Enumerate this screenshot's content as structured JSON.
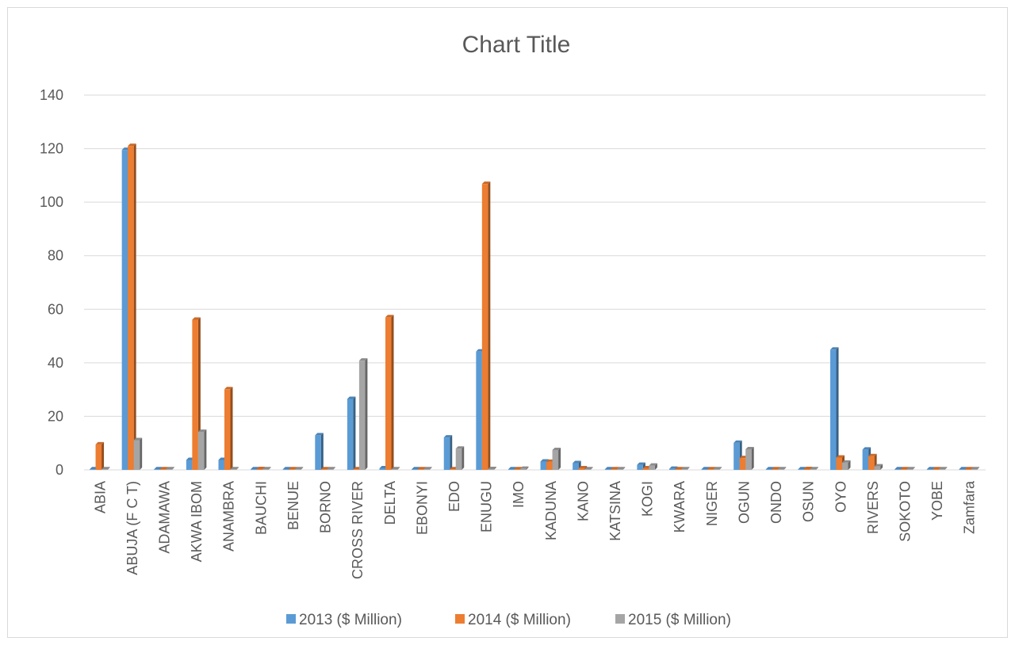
{
  "chart_data": {
    "type": "bar",
    "title": "Chart Title",
    "xlabel": "",
    "ylabel": "",
    "ylim": [
      0,
      140
    ],
    "yticks": [
      0,
      20,
      40,
      60,
      80,
      100,
      120,
      140
    ],
    "grid": true,
    "legend_position": "bottom",
    "categories": [
      "ABIA",
      "ABUJA (F C T)",
      "ADAMAWA",
      "AKWA IBOM",
      "ANAMBRA",
      "BAUCHI",
      "BENUE",
      "BORNO",
      "CROSS RIVER",
      "DELTA",
      "EBONYI",
      "EDO",
      "ENUGU",
      "IMO",
      "KADUNA",
      "KANO",
      "KATSINA",
      "KOGI",
      "KWARA",
      "NIGER",
      "OGUN",
      "ONDO",
      "OSUN",
      "OYO",
      "RIVERS",
      "SOKOTO",
      "YOBE",
      "Zamfara"
    ],
    "series": [
      {
        "name": "2013 ($ Million)",
        "color": "#5b9bd5",
        "values": [
          0,
          119.5,
          0,
          3.7,
          3.7,
          0.1,
          0,
          12.9,
          26.5,
          0.6,
          0,
          12.1,
          44.2,
          0,
          3.1,
          2.5,
          0,
          1.9,
          0.4,
          0,
          10.1,
          0,
          0,
          44.9,
          7.6,
          0,
          0,
          0
        ]
      },
      {
        "name": "2014  ($ Million)",
        "color": "#ed7d31",
        "values": [
          9.5,
          121,
          0.2,
          56.1,
          30.1,
          0.3,
          0.1,
          0.1,
          0,
          57,
          0,
          0.1,
          106.8,
          0,
          3,
          0.6,
          0,
          0.6,
          0.1,
          0,
          4.4,
          0,
          0.3,
          4.6,
          5.1,
          0,
          0.2,
          0
        ]
      },
      {
        "name": "2015  ($ Million)",
        "color": "#a5a5a5",
        "values": [
          0,
          11.1,
          0.1,
          14.2,
          0,
          0.1,
          0,
          0,
          40.8,
          0,
          0,
          7.9,
          0.3,
          0.4,
          7.4,
          0.2,
          0,
          1.6,
          0,
          0,
          7.7,
          0,
          0,
          2.7,
          1.3,
          0,
          0,
          0
        ]
      }
    ]
  }
}
